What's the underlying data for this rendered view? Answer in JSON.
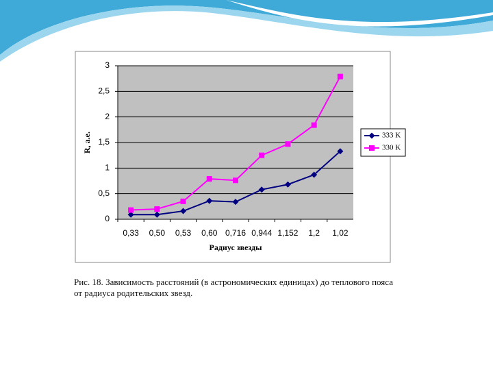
{
  "chart_data": {
    "type": "line",
    "y_label": "R, a.e.",
    "x_label": "Радиус звезды",
    "categories": [
      "0,33",
      "0,50",
      "0,53",
      "0,60",
      "0,716",
      "0,944",
      "1,152",
      "1,2",
      "1,02"
    ],
    "series": [
      {
        "name": "333 K",
        "color": "#000080",
        "marker": "diamond",
        "values": [
          0.09,
          0.09,
          0.16,
          0.36,
          0.34,
          0.58,
          0.68,
          0.87,
          1.33
        ]
      },
      {
        "name": "330 K",
        "color": "#ff00ff",
        "marker": "square",
        "values": [
          0.18,
          0.2,
          0.35,
          0.79,
          0.76,
          1.25,
          1.47,
          1.84,
          2.79
        ]
      }
    ],
    "ylim": [
      0,
      3
    ],
    "yticks": [
      0,
      {
        "value": 0.5,
        "label": "0,5"
      },
      1,
      {
        "value": 1.5,
        "label": "1,5"
      },
      2,
      {
        "value": 2.5,
        "label": "2,5"
      },
      3
    ],
    "grid": true,
    "legend": "right"
  },
  "caption": "Рис. 18. Зависимость расстояний (в астрономических единицах) до теплового пояса от радиуса родительских звезд."
}
